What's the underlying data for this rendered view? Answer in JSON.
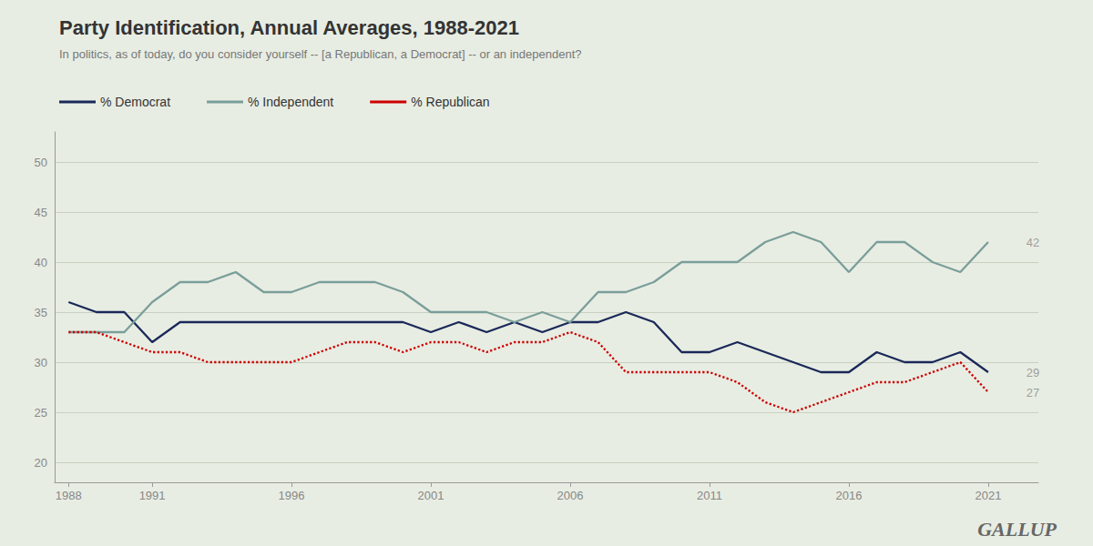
{
  "chart_data": {
    "type": "line",
    "title": "Party Identification, Annual Averages, 1988-2021",
    "subtitle": "In politics, as of today, do you consider yourself -- [a Republican, a Democrat] -- or an independent?",
    "x": [
      1988,
      1989,
      1990,
      1991,
      1992,
      1993,
      1994,
      1995,
      1996,
      1997,
      1998,
      1999,
      2000,
      2001,
      2002,
      2003,
      2004,
      2005,
      2006,
      2007,
      2008,
      2009,
      2010,
      2011,
      2012,
      2013,
      2014,
      2015,
      2016,
      2017,
      2018,
      2019,
      2020,
      2021
    ],
    "series": [
      {
        "name": "% Democrat",
        "color": "#1a2859",
        "line_style": "solid",
        "values": [
          36,
          35,
          35,
          32,
          34,
          34,
          34,
          34,
          34,
          34,
          34,
          34,
          34,
          33,
          34,
          33,
          34,
          33,
          34,
          34,
          35,
          34,
          31,
          31,
          32,
          31,
          30,
          29,
          29,
          31,
          30,
          30,
          31,
          29
        ]
      },
      {
        "name": "% Independent",
        "color": "#7a9e9a",
        "line_style": "solid",
        "values": [
          33,
          33,
          33,
          36,
          38,
          38,
          39,
          37,
          37,
          38,
          38,
          38,
          37,
          35,
          35,
          35,
          34,
          35,
          34,
          37,
          37,
          38,
          40,
          40,
          40,
          42,
          43,
          42,
          39,
          42,
          42,
          40,
          39,
          42
        ]
      },
      {
        "name": "% Republican",
        "color": "#cc0000",
        "line_style": "dotted",
        "values": [
          33,
          33,
          32,
          31,
          31,
          30,
          30,
          30,
          30,
          31,
          32,
          32,
          31,
          32,
          32,
          31,
          32,
          32,
          33,
          32,
          29,
          29,
          29,
          29,
          28,
          26,
          25,
          26,
          27,
          28,
          28,
          29,
          30,
          27
        ]
      }
    ],
    "xlim": [
      1987.5,
      2022.8
    ],
    "xticks": [
      1988,
      1991,
      1996,
      2001,
      2006,
      2011,
      2016,
      2021
    ],
    "ylim": [
      18,
      53
    ],
    "yticks": [
      20,
      25,
      30,
      35,
      40,
      45,
      50
    ],
    "grid": true,
    "annotations": [
      {
        "text": "42",
        "x": 2022.3,
        "y": 42
      },
      {
        "text": "29",
        "x": 2022.3,
        "y": 29
      },
      {
        "text": "27",
        "x": 2022.3,
        "y": 27
      },
      {
        "text": "GALLUP"
      }
    ]
  }
}
